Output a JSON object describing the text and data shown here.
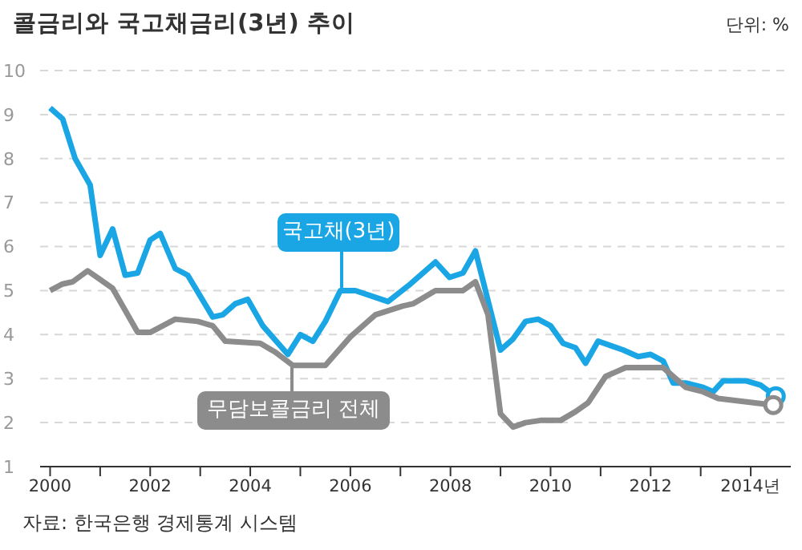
{
  "chart_data": {
    "type": "line",
    "title": "콜금리와 국고채금리(3년) 추이",
    "annotations": [
      "단위: %",
      "자료: 한국은행 경제통계 시스템"
    ],
    "series": [
      {
        "name": "국고채(3년)",
        "color": "#1aa6e4",
        "x": [
          2000.0,
          2000.25,
          2000.5,
          2000.8,
          2001.0,
          2001.25,
          2001.5,
          2001.75,
          2002.0,
          2002.2,
          2002.5,
          2002.75,
          2003.25,
          2003.45,
          2003.7,
          2003.95,
          2004.25,
          2004.75,
          2005.0,
          2005.25,
          2005.5,
          2005.8,
          2006.1,
          2006.75,
          2007.2,
          2007.7,
          2007.98,
          2008.25,
          2008.5,
          2009.0,
          2009.25,
          2009.5,
          2009.75,
          2010.0,
          2010.25,
          2010.5,
          2010.7,
          2010.95,
          2011.45,
          2011.75,
          2012.0,
          2012.25,
          2012.45,
          2012.7,
          2013.05,
          2013.25,
          2013.45,
          2013.9,
          2014.2,
          2014.5
        ],
        "values": [
          9.15,
          8.9,
          8.0,
          7.4,
          5.8,
          6.4,
          5.35,
          5.4,
          6.15,
          6.3,
          5.5,
          5.35,
          4.4,
          4.45,
          4.7,
          4.8,
          4.2,
          3.55,
          4.0,
          3.85,
          4.3,
          5.0,
          5.0,
          4.75,
          5.15,
          5.65,
          5.3,
          5.4,
          5.9,
          3.65,
          3.9,
          4.3,
          4.35,
          4.2,
          3.8,
          3.7,
          3.35,
          3.85,
          3.65,
          3.5,
          3.55,
          3.4,
          2.9,
          2.9,
          2.8,
          2.7,
          2.95,
          2.95,
          2.85,
          2.6
        ]
      },
      {
        "name": "무담보콜금리 전체",
        "color": "#8c8c8c",
        "x": [
          2000.0,
          2000.25,
          2000.45,
          2000.75,
          2001.0,
          2001.25,
          2001.75,
          2002.0,
          2002.5,
          2002.95,
          2003.25,
          2003.5,
          2004.2,
          2004.5,
          2004.85,
          2005.5,
          2006.0,
          2006.5,
          2007.05,
          2007.25,
          2007.7,
          2008.25,
          2008.5,
          2008.75,
          2009.0,
          2009.25,
          2009.5,
          2009.8,
          2010.2,
          2010.5,
          2010.75,
          2011.1,
          2011.5,
          2012.25,
          2012.7,
          2013.05,
          2013.35,
          2014.45
        ],
        "values": [
          5.0,
          5.15,
          5.2,
          5.45,
          5.25,
          5.05,
          4.05,
          4.05,
          4.35,
          4.3,
          4.2,
          3.85,
          3.8,
          3.6,
          3.3,
          3.3,
          3.95,
          4.45,
          4.65,
          4.7,
          5.0,
          5.0,
          5.2,
          4.45,
          2.2,
          1.9,
          2.0,
          2.05,
          2.05,
          2.25,
          2.45,
          3.05,
          3.25,
          3.25,
          2.8,
          2.7,
          2.55,
          2.4
        ]
      }
    ],
    "xlim": [
      1999.8,
      2014.8
    ],
    "xticks": [
      2000,
      {
        "value": 2001,
        "label": null
      },
      2002,
      {
        "value": 2003,
        "label": null
      },
      2004,
      {
        "value": 2005,
        "label": null
      },
      2006,
      {
        "value": 2007,
        "label": null
      },
      2008,
      {
        "value": 2009,
        "label": null
      },
      2010,
      {
        "value": 2011,
        "label": null
      },
      2012,
      {
        "value": 2013,
        "label": null
      },
      {
        "value": 2014,
        "label": "2014년"
      }
    ],
    "ylim": [
      1,
      10
    ],
    "yticks": [
      1,
      2,
      3,
      4,
      5,
      6,
      7,
      8,
      9,
      10
    ],
    "grid": "y",
    "line_style": "solid"
  }
}
